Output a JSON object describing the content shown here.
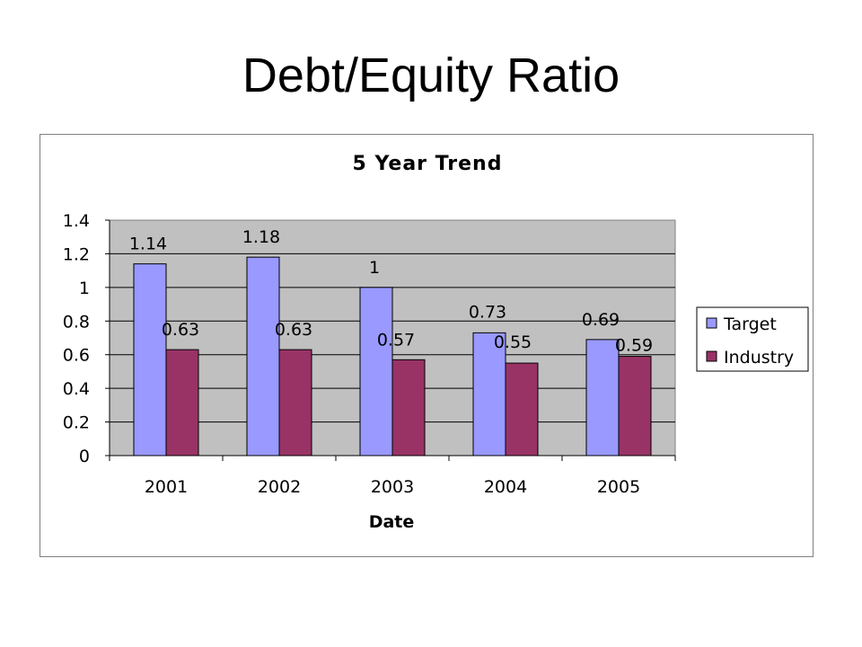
{
  "slide": {
    "title": "Debt/Equity Ratio"
  },
  "colors": {
    "target": "#9999FF",
    "industry": "#993366",
    "plot_bg": "#C0C0C0"
  },
  "chart_data": {
    "type": "bar",
    "title": "5 Year Trend",
    "xlabel": "Date",
    "ylabel": "",
    "categories": [
      "2001",
      "2002",
      "2003",
      "2004",
      "2005"
    ],
    "series": [
      {
        "name": "Target",
        "values": [
          1.14,
          1.18,
          1,
          0.73,
          0.69
        ],
        "labels": [
          "1.14",
          "1.18",
          "1",
          "0.73",
          "0.69"
        ]
      },
      {
        "name": "Industry",
        "values": [
          0.63,
          0.63,
          0.57,
          0.55,
          0.59
        ],
        "labels": [
          "0.63",
          "0.63",
          "0.57",
          "0.55",
          "0.59"
        ]
      }
    ],
    "ylim": [
      0,
      1.4
    ],
    "yticks": [
      "0",
      "0.2",
      "0.4",
      "0.6",
      "0.8",
      "1",
      "1.2",
      "1.4"
    ],
    "grid": true,
    "legend": "right"
  }
}
